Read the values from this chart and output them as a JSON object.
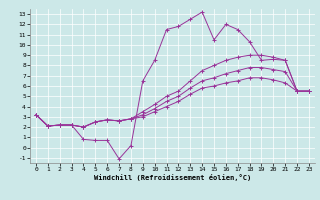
{
  "xlabel": "Windchill (Refroidissement éolien,°C)",
  "bg_color": "#cce8e8",
  "line_color": "#993399",
  "xlim": [
    -0.5,
    23.5
  ],
  "ylim": [
    -1.5,
    13.5
  ],
  "xticks": [
    0,
    1,
    2,
    3,
    4,
    5,
    6,
    7,
    8,
    9,
    10,
    11,
    12,
    13,
    14,
    15,
    16,
    17,
    18,
    19,
    20,
    21,
    22,
    23
  ],
  "yticks": [
    -1,
    0,
    1,
    2,
    3,
    4,
    5,
    6,
    7,
    8,
    9,
    10,
    11,
    12,
    13
  ],
  "series": [
    [
      3.2,
      2.1,
      2.2,
      2.2,
      0.8,
      0.7,
      0.7,
      -1.1,
      0.2,
      6.5,
      8.5,
      11.5,
      11.8,
      12.5,
      13.2,
      10.5,
      12.0,
      11.5,
      10.3,
      8.5,
      8.6,
      8.5,
      5.5,
      5.5
    ],
    [
      3.2,
      2.1,
      2.2,
      2.2,
      2.0,
      2.5,
      2.7,
      2.6,
      2.8,
      3.5,
      4.2,
      5.0,
      5.5,
      6.5,
      7.5,
      8.0,
      8.5,
      8.8,
      9.0,
      9.0,
      8.8,
      8.5,
      5.5,
      5.5
    ],
    [
      3.2,
      2.1,
      2.2,
      2.2,
      2.0,
      2.5,
      2.7,
      2.6,
      2.8,
      3.2,
      3.8,
      4.5,
      5.0,
      5.8,
      6.5,
      6.8,
      7.2,
      7.5,
      7.8,
      7.8,
      7.6,
      7.4,
      5.5,
      5.5
    ],
    [
      3.2,
      2.1,
      2.2,
      2.2,
      2.0,
      2.5,
      2.7,
      2.6,
      2.8,
      3.0,
      3.5,
      4.0,
      4.5,
      5.2,
      5.8,
      6.0,
      6.3,
      6.5,
      6.8,
      6.8,
      6.6,
      6.3,
      5.5,
      5.5
    ]
  ]
}
